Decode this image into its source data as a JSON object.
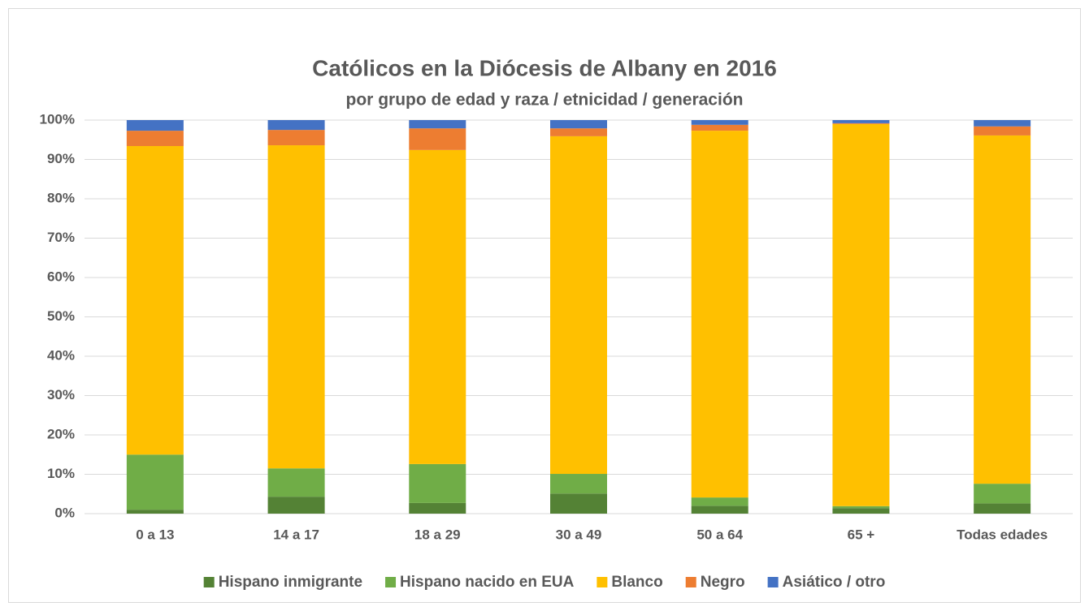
{
  "chart_data": {
    "type": "stacked_bar",
    "title": "Católicos en la Diócesis de Albany en 2016",
    "subtitle": "por grupo de edad y raza / etnicidad / generación",
    "categories": [
      "0 a 13",
      "14 a 17",
      "18 a 29",
      "30 a 49",
      "50 a 64",
      "65 +",
      "Todas edades"
    ],
    "series": [
      {
        "name": "Hispano inmigrante",
        "color": "#548235",
        "values": [
          1,
          4.3,
          2.7,
          5.1,
          2,
          1.4,
          2.6
        ]
      },
      {
        "name": "Hispano nacido en EUA",
        "color": "#70ad47",
        "values": [
          14,
          7.2,
          9.9,
          5,
          2.1,
          0.5,
          5
        ]
      },
      {
        "name": "Blanco",
        "color": "#ffc000",
        "values": [
          78.4,
          82.1,
          79.8,
          85.8,
          93.2,
          97.1,
          88.5
        ]
      },
      {
        "name": "Negro",
        "color": "#ed7d31",
        "values": [
          3.9,
          3.9,
          5.5,
          2,
          1.5,
          0.2,
          2.3
        ]
      },
      {
        "name": "Asiático / otro",
        "color": "#4472c4",
        "values": [
          2.7,
          2.5,
          2.1,
          2.1,
          1.2,
          0.8,
          1.6
        ]
      }
    ],
    "ylim": [
      0,
      100
    ],
    "yticks": [
      {
        "value": 0,
        "label": "0%"
      },
      {
        "value": 10,
        "label": "10%"
      },
      {
        "value": 20,
        "label": "20%"
      },
      {
        "value": 30,
        "label": "30%"
      },
      {
        "value": 40,
        "label": "40%"
      },
      {
        "value": 50,
        "label": "50%"
      },
      {
        "value": 60,
        "label": "60%"
      },
      {
        "value": 70,
        "label": "70%"
      },
      {
        "value": 80,
        "label": "80%"
      },
      {
        "value": 90,
        "label": "90%"
      },
      {
        "value": 100,
        "label": "100%"
      }
    ],
    "grid": true,
    "legend": "bottom"
  }
}
